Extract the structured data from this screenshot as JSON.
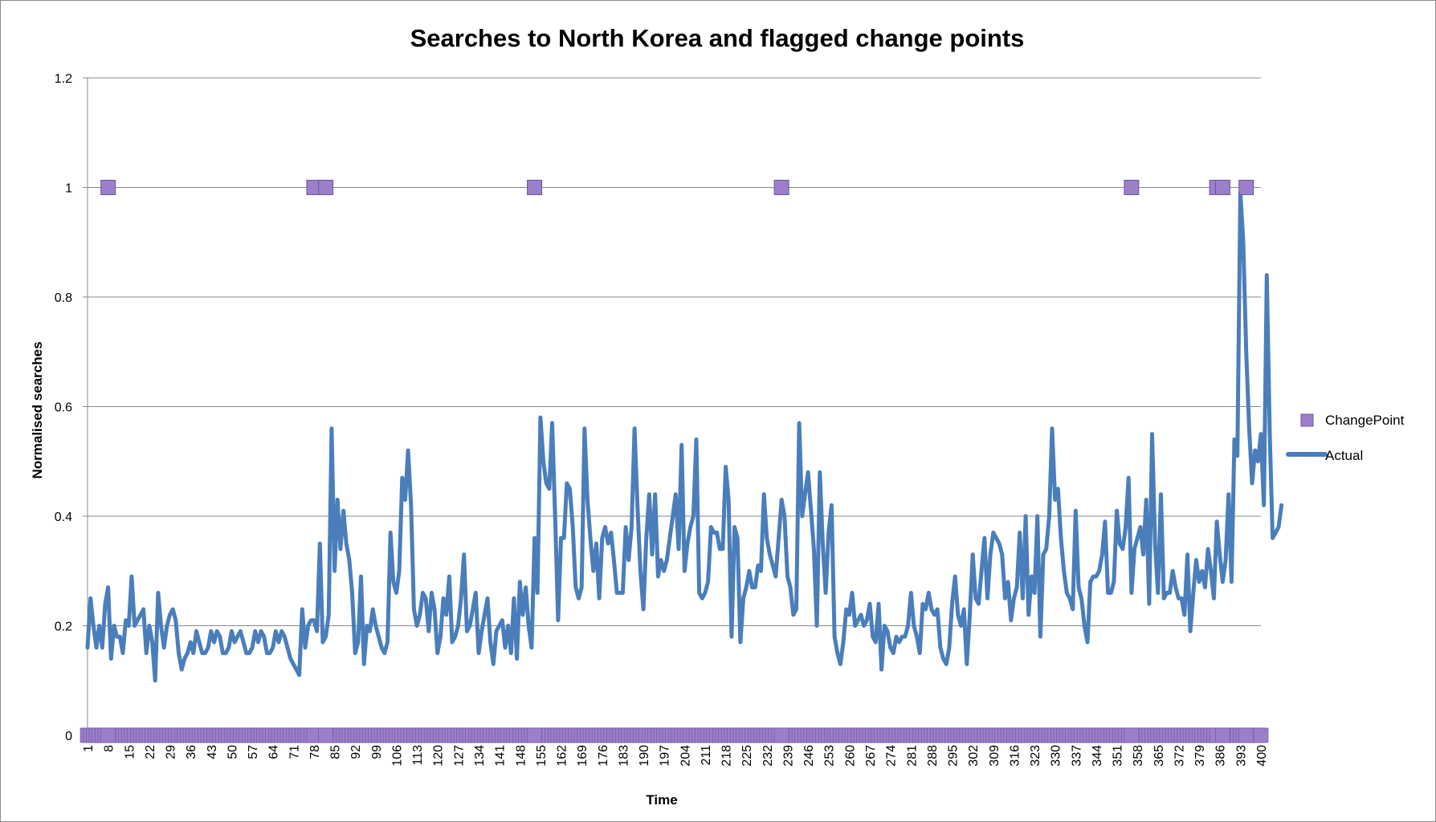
{
  "chart_data": {
    "type": "line",
    "title": "Searches to North Korea and flagged change points",
    "xlabel": "Time",
    "ylabel": "Normalised searches",
    "ylim": [
      0,
      1.2
    ],
    "yticks": [
      0,
      0.2,
      0.4,
      0.6,
      0.8,
      1,
      1.2
    ],
    "ytick_labels": [
      "0",
      "0.2",
      "0.4",
      "0.6",
      "0.8",
      "1",
      "1.2"
    ],
    "xlim": [
      1,
      400
    ],
    "x_tick_labels": [
      "1",
      "8",
      "15",
      "22",
      "29",
      "36",
      "43",
      "50",
      "57",
      "64",
      "71",
      "78",
      "85",
      "92",
      "99",
      "106",
      "113",
      "120",
      "127",
      "134",
      "141",
      "148",
      "155",
      "162",
      "169",
      "176",
      "183",
      "190",
      "197",
      "204",
      "211",
      "218",
      "225",
      "232",
      "239",
      "246",
      "253",
      "260",
      "267",
      "274",
      "281",
      "288",
      "295",
      "302",
      "309",
      "316",
      "323",
      "330",
      "337",
      "344",
      "351",
      "358",
      "365",
      "372",
      "379",
      "386",
      "393",
      "400"
    ],
    "grid": "horizontal",
    "legend_position": "right",
    "series": [
      {
        "name": "ChangePoint",
        "type": "scatter",
        "color": "#9b7fc8",
        "marker": "square",
        "baseline_value": 0,
        "flagged_value": 1,
        "flagged_x": [
          8,
          78,
          82,
          153,
          237,
          356,
          385,
          387,
          395
        ]
      },
      {
        "name": "Actual",
        "type": "line",
        "color": "#4a7ebb",
        "values": [
          0.16,
          0.25,
          0.2,
          0.16,
          0.2,
          0.16,
          0.24,
          0.27,
          0.14,
          0.2,
          0.18,
          0.18,
          0.15,
          0.21,
          0.2,
          0.29,
          0.2,
          0.21,
          0.22,
          0.23,
          0.15,
          0.2,
          0.17,
          0.1,
          0.26,
          0.2,
          0.16,
          0.2,
          0.22,
          0.23,
          0.21,
          0.15,
          0.12,
          0.14,
          0.15,
          0.17,
          0.15,
          0.19,
          0.17,
          0.15,
          0.15,
          0.16,
          0.19,
          0.17,
          0.19,
          0.18,
          0.15,
          0.15,
          0.16,
          0.19,
          0.17,
          0.18,
          0.19,
          0.17,
          0.15,
          0.15,
          0.16,
          0.19,
          0.17,
          0.19,
          0.18,
          0.15,
          0.15,
          0.16,
          0.19,
          0.17,
          0.19,
          0.18,
          0.16,
          0.14,
          0.13,
          0.12,
          0.11,
          0.23,
          0.16,
          0.2,
          0.21,
          0.21,
          0.19,
          0.35,
          0.17,
          0.18,
          0.22,
          0.56,
          0.3,
          0.43,
          0.34,
          0.41,
          0.35,
          0.32,
          0.26,
          0.15,
          0.17,
          0.29,
          0.13,
          0.2,
          0.19,
          0.23,
          0.2,
          0.18,
          0.16,
          0.15,
          0.17,
          0.37,
          0.28,
          0.26,
          0.3,
          0.47,
          0.43,
          0.52,
          0.42,
          0.23,
          0.2,
          0.22,
          0.26,
          0.25,
          0.19,
          0.26,
          0.23,
          0.15,
          0.18,
          0.25,
          0.22,
          0.29,
          0.17,
          0.18,
          0.2,
          0.25,
          0.33,
          0.19,
          0.2,
          0.23,
          0.26,
          0.15,
          0.19,
          0.22,
          0.25,
          0.17,
          0.13,
          0.19,
          0.2,
          0.21,
          0.16,
          0.2,
          0.15,
          0.25,
          0.14,
          0.28,
          0.22,
          0.27,
          0.2,
          0.16,
          0.36,
          0.26,
          0.58,
          0.5,
          0.46,
          0.45,
          0.57,
          0.4,
          0.21,
          0.36,
          0.36,
          0.46,
          0.45,
          0.38,
          0.27,
          0.25,
          0.27,
          0.56,
          0.43,
          0.36,
          0.3,
          0.35,
          0.25,
          0.36,
          0.38,
          0.35,
          0.37,
          0.32,
          0.26,
          0.26,
          0.26,
          0.38,
          0.32,
          0.38,
          0.56,
          0.42,
          0.3,
          0.23,
          0.36,
          0.44,
          0.33,
          0.44,
          0.29,
          0.32,
          0.3,
          0.32,
          0.36,
          0.4,
          0.44,
          0.34,
          0.53,
          0.3,
          0.35,
          0.38,
          0.4,
          0.54,
          0.26,
          0.25,
          0.26,
          0.28,
          0.38,
          0.37,
          0.37,
          0.34,
          0.34,
          0.49,
          0.43,
          0.18,
          0.38,
          0.36,
          0.17,
          0.25,
          0.27,
          0.3,
          0.27,
          0.27,
          0.31,
          0.3,
          0.44,
          0.36,
          0.33,
          0.31,
          0.29,
          0.36,
          0.43,
          0.4,
          0.29,
          0.27,
          0.22,
          0.23,
          0.57,
          0.4,
          0.44,
          0.48,
          0.41,
          0.34,
          0.2,
          0.48,
          0.35,
          0.26,
          0.37,
          0.42,
          0.18,
          0.15,
          0.13,
          0.17,
          0.23,
          0.22,
          0.26,
          0.2,
          0.21,
          0.22,
          0.2,
          0.21,
          0.24,
          0.18,
          0.17,
          0.24,
          0.12,
          0.2,
          0.19,
          0.16,
          0.15,
          0.18,
          0.17,
          0.18,
          0.18,
          0.2,
          0.26,
          0.2,
          0.18,
          0.15,
          0.24,
          0.23,
          0.26,
          0.23,
          0.22,
          0.23,
          0.16,
          0.14,
          0.13,
          0.16,
          0.24,
          0.29,
          0.22,
          0.2,
          0.23,
          0.13,
          0.22,
          0.33,
          0.25,
          0.24,
          0.3,
          0.36,
          0.25,
          0.33,
          0.37,
          0.36,
          0.35,
          0.33,
          0.25,
          0.28,
          0.21,
          0.25,
          0.27,
          0.37,
          0.25,
          0.4,
          0.22,
          0.29,
          0.26,
          0.4,
          0.18,
          0.33,
          0.34,
          0.4,
          0.56,
          0.43,
          0.45,
          0.36,
          0.3,
          0.26,
          0.25,
          0.23,
          0.41,
          0.27,
          0.25,
          0.2,
          0.17,
          0.28,
          0.29,
          0.29,
          0.3,
          0.33,
          0.39,
          0.26,
          0.26,
          0.28,
          0.41,
          0.35,
          0.34,
          0.38,
          0.47,
          0.26,
          0.34,
          0.36,
          0.38,
          0.33,
          0.43,
          0.24,
          0.55,
          0.35,
          0.26,
          0.44,
          0.25,
          0.26,
          0.26,
          0.3,
          0.27,
          0.25,
          0.25,
          0.22,
          0.33,
          0.19,
          0.26,
          0.32,
          0.28,
          0.3,
          0.27,
          0.34,
          0.3,
          0.25,
          0.39,
          0.33,
          0.28,
          0.32,
          0.44,
          0.28,
          0.54,
          0.51,
          0.99,
          0.9,
          0.7,
          0.56,
          0.46,
          0.52,
          0.5,
          0.55,
          0.42,
          0.84,
          0.55,
          0.36,
          0.37,
          0.38,
          0.42
        ]
      }
    ]
  }
}
